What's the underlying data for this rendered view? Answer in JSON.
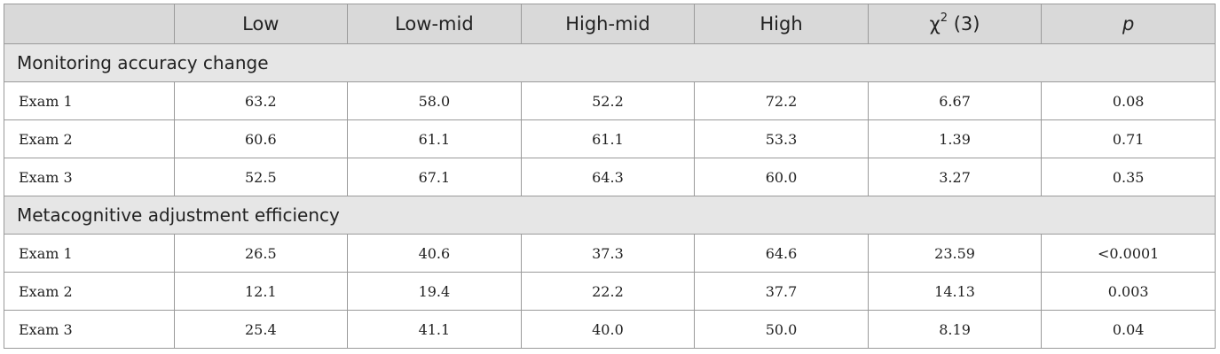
{
  "header": {
    "corner": "",
    "columns": [
      "Low",
      "Low-mid",
      "High-mid",
      "High"
    ],
    "chi_symbol": "χ",
    "chi_exp": "2",
    "chi_df": " (3)",
    "p_label": "p"
  },
  "sections": [
    {
      "title": "Monitoring accuracy change",
      "rows": [
        {
          "label": "Exam 1",
          "values": [
            "63.2",
            "58.0",
            "52.2",
            "72.2",
            "6.67",
            "0.08"
          ]
        },
        {
          "label": "Exam 2",
          "values": [
            "60.6",
            "61.1",
            "61.1",
            "53.3",
            "1.39",
            "0.71"
          ]
        },
        {
          "label": "Exam 3",
          "values": [
            "52.5",
            "67.1",
            "64.3",
            "60.0",
            "3.27",
            "0.35"
          ]
        }
      ]
    },
    {
      "title": "Metacognitive adjustment efficiency",
      "rows": [
        {
          "label": "Exam 1",
          "values": [
            "26.5",
            "40.6",
            "37.3",
            "64.6",
            "23.59",
            "<0.0001"
          ]
        },
        {
          "label": "Exam 2",
          "values": [
            "12.1",
            "19.4",
            "22.2",
            "37.7",
            "14.13",
            "0.003"
          ]
        },
        {
          "label": "Exam 3",
          "values": [
            "25.4",
            "41.1",
            "40.0",
            "50.0",
            "8.19",
            "0.04"
          ]
        }
      ]
    }
  ]
}
